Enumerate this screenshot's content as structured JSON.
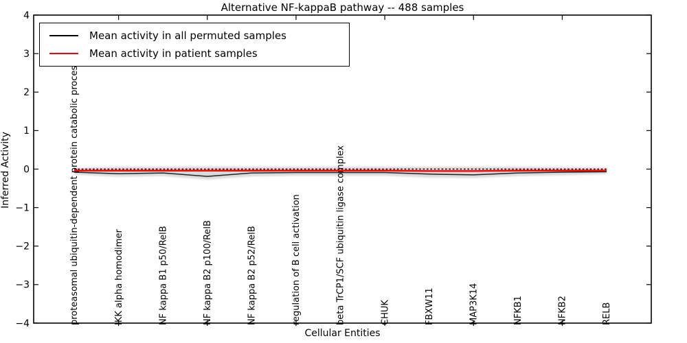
{
  "title": "Alternative NF-kappaB pathway -- 488 samples",
  "chart_data": {
    "type": "line",
    "title": "Alternative NF-kappaB pathway -- 488 samples",
    "xlabel": "Cellular Entities",
    "ylabel": "Inferred Activity",
    "ylim": [
      -4,
      4
    ],
    "yticks": [
      4,
      3,
      2,
      1,
      0,
      -1,
      -2,
      -3,
      -4
    ],
    "grid": false,
    "legend_position": "upper left",
    "categories": [
      "proteasomal ubiquitin-dependent protein catabolic process",
      "IKK alpha homodimer",
      "NF kappa B1 p50/RelB",
      "NF kappa B2 p100/RelB",
      "NF kappa B2 p52/RelB",
      "regulation of B cell activation",
      "beta TrCP1/SCF ubiquitin ligase complex",
      "CHUK",
      "FBXW11",
      "MAP3K14",
      "NFKB1",
      "NFKB2",
      "RELB"
    ],
    "series": [
      {
        "name": "Mean activity in all permuted samples",
        "color": "#000000",
        "style": "solid",
        "width": 1.5,
        "in_legend": true,
        "values": [
          -0.08,
          -0.12,
          -0.1,
          -0.19,
          -0.1,
          -0.09,
          -0.09,
          -0.09,
          -0.13,
          -0.15,
          -0.1,
          -0.08,
          -0.07
        ]
      },
      {
        "name": "Mean activity in patient samples",
        "color": "#ff0000",
        "style": "solid",
        "width": 2.4,
        "in_legend": true,
        "values": [
          -0.04,
          -0.04,
          -0.04,
          -0.04,
          -0.04,
          -0.04,
          -0.04,
          -0.04,
          -0.05,
          -0.05,
          -0.04,
          -0.04,
          -0.04
        ]
      },
      {
        "name": "permuted-quantile-dotted",
        "color": "#000000",
        "style": "dotted",
        "width": 1.4,
        "in_legend": false,
        "values": [
          0,
          0,
          0,
          0,
          0,
          0,
          0,
          0,
          0,
          0,
          0,
          0,
          0
        ]
      }
    ],
    "band": {
      "name": "permuted-activity-range-band",
      "color": "#d9d9d9",
      "upper": [
        0.03,
        0.06,
        0.06,
        0.07,
        0.06,
        0.06,
        0.06,
        0.06,
        0.06,
        0.06,
        0.06,
        0.05,
        0.04
      ],
      "lower": [
        -0.14,
        -0.2,
        -0.18,
        -0.27,
        -0.19,
        -0.17,
        -0.17,
        -0.17,
        -0.22,
        -0.23,
        -0.18,
        -0.16,
        -0.13
      ]
    },
    "legend_entries": [
      {
        "label": "Mean activity in all permuted samples",
        "color": "#000000"
      },
      {
        "label": "Mean activity in patient samples",
        "color": "#ff0000"
      }
    ]
  }
}
